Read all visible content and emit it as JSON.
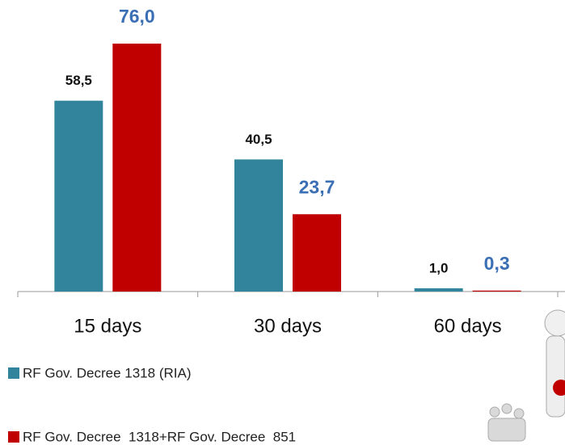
{
  "chart_data": {
    "type": "bar",
    "categories": [
      "15 days",
      "30 days",
      "60 days"
    ],
    "series": [
      {
        "name": "RF Gov. Decree 1318 (RIA)",
        "color": "#31849b",
        "label_color": "#111111",
        "values": [
          58.5,
          40.5,
          1.0
        ],
        "value_labels": [
          "58,5",
          "40,5",
          "1,0"
        ]
      },
      {
        "name": "RF Gov. Decree  1318+RF Gov. Decree  851",
        "color": "#c00000",
        "label_color": "#3a6fb5",
        "values": [
          76.0,
          23.7,
          0.3
        ],
        "value_labels": [
          "76,0",
          "23,7",
          "0,3"
        ]
      }
    ]
  }
}
